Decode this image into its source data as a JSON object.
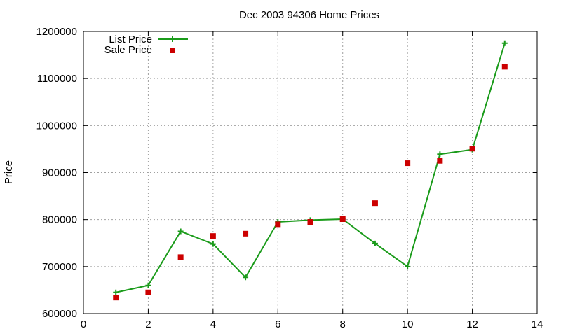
{
  "chart_data": {
    "type": "line",
    "title": "Dec 2003 94306 Home Prices",
    "xlabel": "",
    "ylabel": "Price",
    "xlim": [
      0,
      14
    ],
    "ylim": [
      600000,
      1200000
    ],
    "x_ticks": [
      0,
      2,
      4,
      6,
      8,
      10,
      12,
      14
    ],
    "y_ticks": [
      600000,
      700000,
      800000,
      900000,
      1000000,
      1100000,
      1200000
    ],
    "grid": true,
    "legend_position": "top-left",
    "series": [
      {
        "name": "List Price",
        "style": "line-with-plus-markers",
        "color": "#1a9b1a",
        "x": [
          1,
          2,
          3,
          4,
          5,
          6,
          7,
          8,
          9,
          10,
          11,
          12,
          13
        ],
        "values": [
          645000,
          660000,
          775000,
          748000,
          677000,
          795000,
          799000,
          801000,
          749000,
          700000,
          939000,
          949000,
          1175000
        ]
      },
      {
        "name": "Sale Price",
        "style": "square-markers",
        "color": "#cc0000",
        "x": [
          1,
          2,
          3,
          4,
          5,
          6,
          7,
          8,
          9,
          10,
          11,
          12,
          13
        ],
        "values": [
          634000,
          645000,
          720000,
          765000,
          770000,
          790000,
          795000,
          801000,
          835000,
          920000,
          925000,
          951000,
          1125000
        ]
      }
    ]
  }
}
